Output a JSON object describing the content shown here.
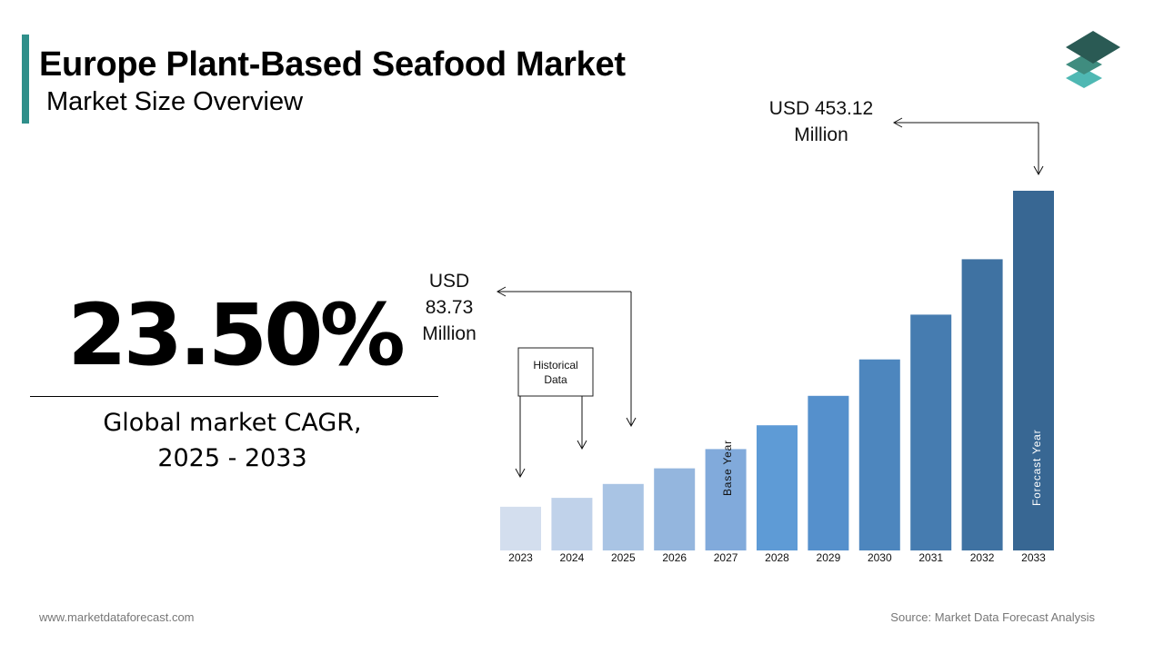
{
  "header": {
    "title": "Europe Plant-Based Seafood Market",
    "subtitle": "Market Size Overview"
  },
  "cagr": {
    "value": "23.50%",
    "label_line1": "Global market CAGR,",
    "label_line2": "2025 - 2033"
  },
  "footer": {
    "website": "www.marketdataforecast.com",
    "source": "Source: Market Data Forecast Analysis"
  },
  "colors": {
    "accent": "#2f8f8a",
    "logo_layers": [
      "#2a5a54",
      "#3f8c7f",
      "#4fb8b3"
    ]
  },
  "annotations": {
    "historical_box": [
      "Historical",
      "Data"
    ],
    "base_value": [
      "USD",
      "83.73",
      "Million"
    ],
    "forecast_value": [
      "USD 453.12",
      "Million"
    ],
    "base_year_label": "Base Year",
    "forecast_year_label": "Forecast Year"
  },
  "chart_data": {
    "type": "bar",
    "categories": [
      "2023",
      "2024",
      "2025",
      "2026",
      "2027",
      "2028",
      "2029",
      "2030",
      "2031",
      "2032",
      "2033"
    ],
    "values": [
      55.0,
      66.2,
      83.73,
      103.4,
      127.7,
      157.7,
      194.8,
      240.6,
      297.1,
      366.9,
      453.12
    ],
    "bar_colors": [
      "#d3deee",
      "#c0d2ea",
      "#a9c4e4",
      "#94b6de",
      "#81aadb",
      "#5e9bd6",
      "#5590cc",
      "#4d86be",
      "#467cb0",
      "#3f72a2",
      "#386793"
    ],
    "ylim": [
      0,
      453.12
    ],
    "grid": false,
    "legend": "none"
  }
}
